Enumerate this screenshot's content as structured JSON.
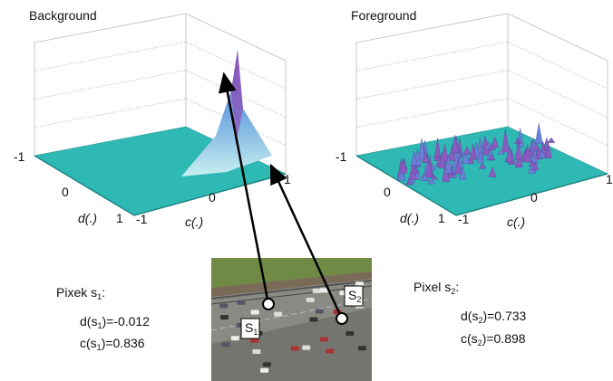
{
  "panels": [
    {
      "title": "Background",
      "d_label": "d(.)",
      "c_label": "c(.)",
      "d_ticks": [
        "-1",
        "0",
        "1"
      ],
      "c_ticks": [
        "-1",
        "0",
        "1"
      ]
    },
    {
      "title": "Foreground",
      "d_label": "d(.)",
      "c_label": "c(.)",
      "d_ticks": [
        "-1",
        "0",
        "1"
      ],
      "c_ticks": [
        "-1",
        "0",
        "1"
      ]
    }
  ],
  "pixels": [
    {
      "label": [
        "Pixek s",
        "1",
        ":"
      ],
      "d": [
        "d(s",
        "1",
        ")=-0.012"
      ],
      "c": [
        "c(s",
        "1",
        ")=0.836"
      ],
      "marker": [
        "S",
        "1"
      ]
    },
    {
      "label": [
        "Pixel s",
        "2",
        ":"
      ],
      "d": [
        "d(s",
        "2",
        ")=0.733"
      ],
      "c": [
        "c(s",
        "2",
        ")=0.898"
      ],
      "marker": [
        "S",
        "2"
      ]
    }
  ]
}
